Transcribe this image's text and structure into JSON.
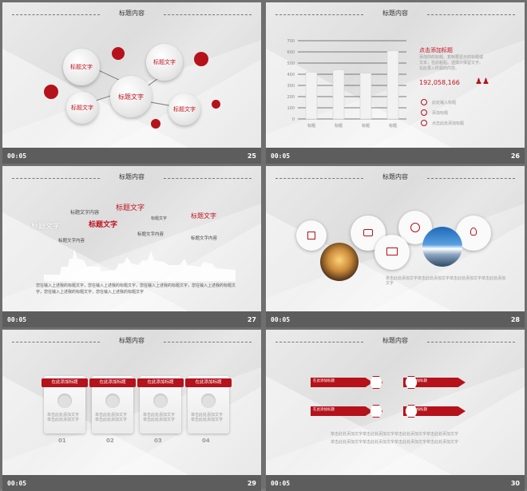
{
  "slides": [
    {
      "number": "25",
      "time": "00:05",
      "title": "标题内容",
      "center": "标题文字",
      "nodes": [
        "标题文字",
        "标题文字",
        "标题文字",
        "标题文字"
      ]
    },
    {
      "number": "26",
      "time": "00:05",
      "title": "标题内容",
      "heading": "点击添加标题",
      "desc": "添加你的标题，复制要显示的标题或文本，在此粘贴。选择只保留文字。在此录入所需的内容。",
      "value": "192,058,166",
      "items": [
        "此处输入标题",
        "添加标题",
        "点击此处添加标题"
      ],
      "chart_data": {
        "type": "bar",
        "categories": [
          "标题",
          "标题",
          "标题",
          "标题"
        ],
        "values": [
          420,
          440,
          410,
          610
        ],
        "ylim": [
          0,
          700
        ],
        "yticks": [
          "0",
          "100",
          "200",
          "300",
          "400",
          "500",
          "600",
          "700"
        ]
      }
    },
    {
      "number": "27",
      "time": "00:05",
      "title": "标题内容",
      "words": [
        "标题文字内容",
        "标题文字内容",
        "标题文字",
        "标题文字",
        "标题文字内容",
        "标题文字",
        "标题文字内容",
        "标题文字内容",
        "标题文字内容"
      ],
      "paragraph": "您在输入上述我的标题文字，您在输入上述我的标题文字，您在输入上述我的标题文字，您在输入上述我的标题文字，您在输入上述我的标题文字，您在输入上述我的标题文字"
    },
    {
      "number": "28",
      "time": "00:05",
      "title": "标题内容",
      "caption": "单击此处添加文字单击此处添加文字单击此处添加文字单击此处添加文字"
    },
    {
      "number": "29",
      "time": "00:05",
      "title": "标题内容",
      "cards": [
        {
          "header": "在此添加标题",
          "n": "01"
        },
        {
          "header": "在此添加标题",
          "n": "02"
        },
        {
          "header": "在此添加标题",
          "n": "03"
        },
        {
          "header": "在此添加标题",
          "n": "04"
        }
      ],
      "card_text": "单击此处添加文字单击此处添加文字"
    },
    {
      "number": "30",
      "time": "00:05",
      "title": "标题内容",
      "arrows": [
        "在此添加标题",
        "在此添加标题",
        "在此添加标题",
        "在此添加标题"
      ],
      "arrow_text": "单击此处添加文字单击此处添加文字",
      "note": "单击此处添加文字单击此处添加文字单击此处添加文字单击此处添加文字"
    }
  ]
}
